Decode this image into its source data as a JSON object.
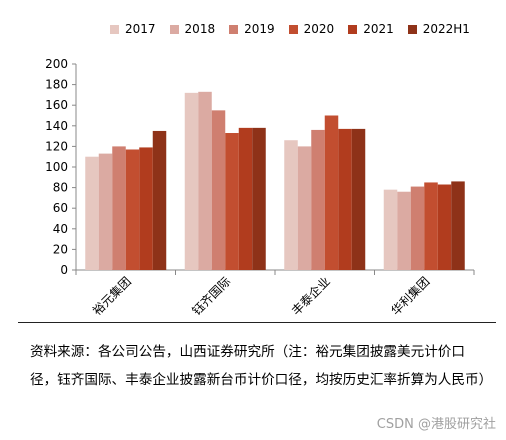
{
  "chart_data": {
    "type": "bar",
    "categories": [
      "裕元集团",
      "钰齐国际",
      "丰泰企业",
      "华利集团"
    ],
    "series": [
      {
        "name": "2017",
        "color": "#e6c7c0",
        "values": [
          110,
          172,
          126,
          78
        ]
      },
      {
        "name": "2018",
        "color": "#dbaaa2",
        "values": [
          113,
          173,
          120,
          76
        ]
      },
      {
        "name": "2019",
        "color": "#cf7f70",
        "values": [
          120,
          155,
          136,
          81
        ]
      },
      {
        "name": "2020",
        "color": "#c24e30",
        "values": [
          117,
          133,
          150,
          85
        ]
      },
      {
        "name": "2021",
        "color": "#b13c1e",
        "values": [
          119,
          138,
          137,
          83
        ]
      },
      {
        "name": "2022H1",
        "color": "#8e3218",
        "values": [
          135,
          138,
          137,
          86
        ]
      }
    ],
    "ylim": [
      0,
      200
    ],
    "yticks": [
      0,
      20,
      40,
      60,
      80,
      100,
      120,
      140,
      160,
      180,
      200
    ],
    "xlabel": "",
    "ylabel": "",
    "title": ""
  },
  "source_text": "资料来源：各公司公告，山西证券研究所（注：裕元集团披露美元计价口径，钰齐国际、丰泰企业披露新台币计价口径，均按历史汇率折算为人民币）",
  "watermark": "CSDN @港股研究社"
}
